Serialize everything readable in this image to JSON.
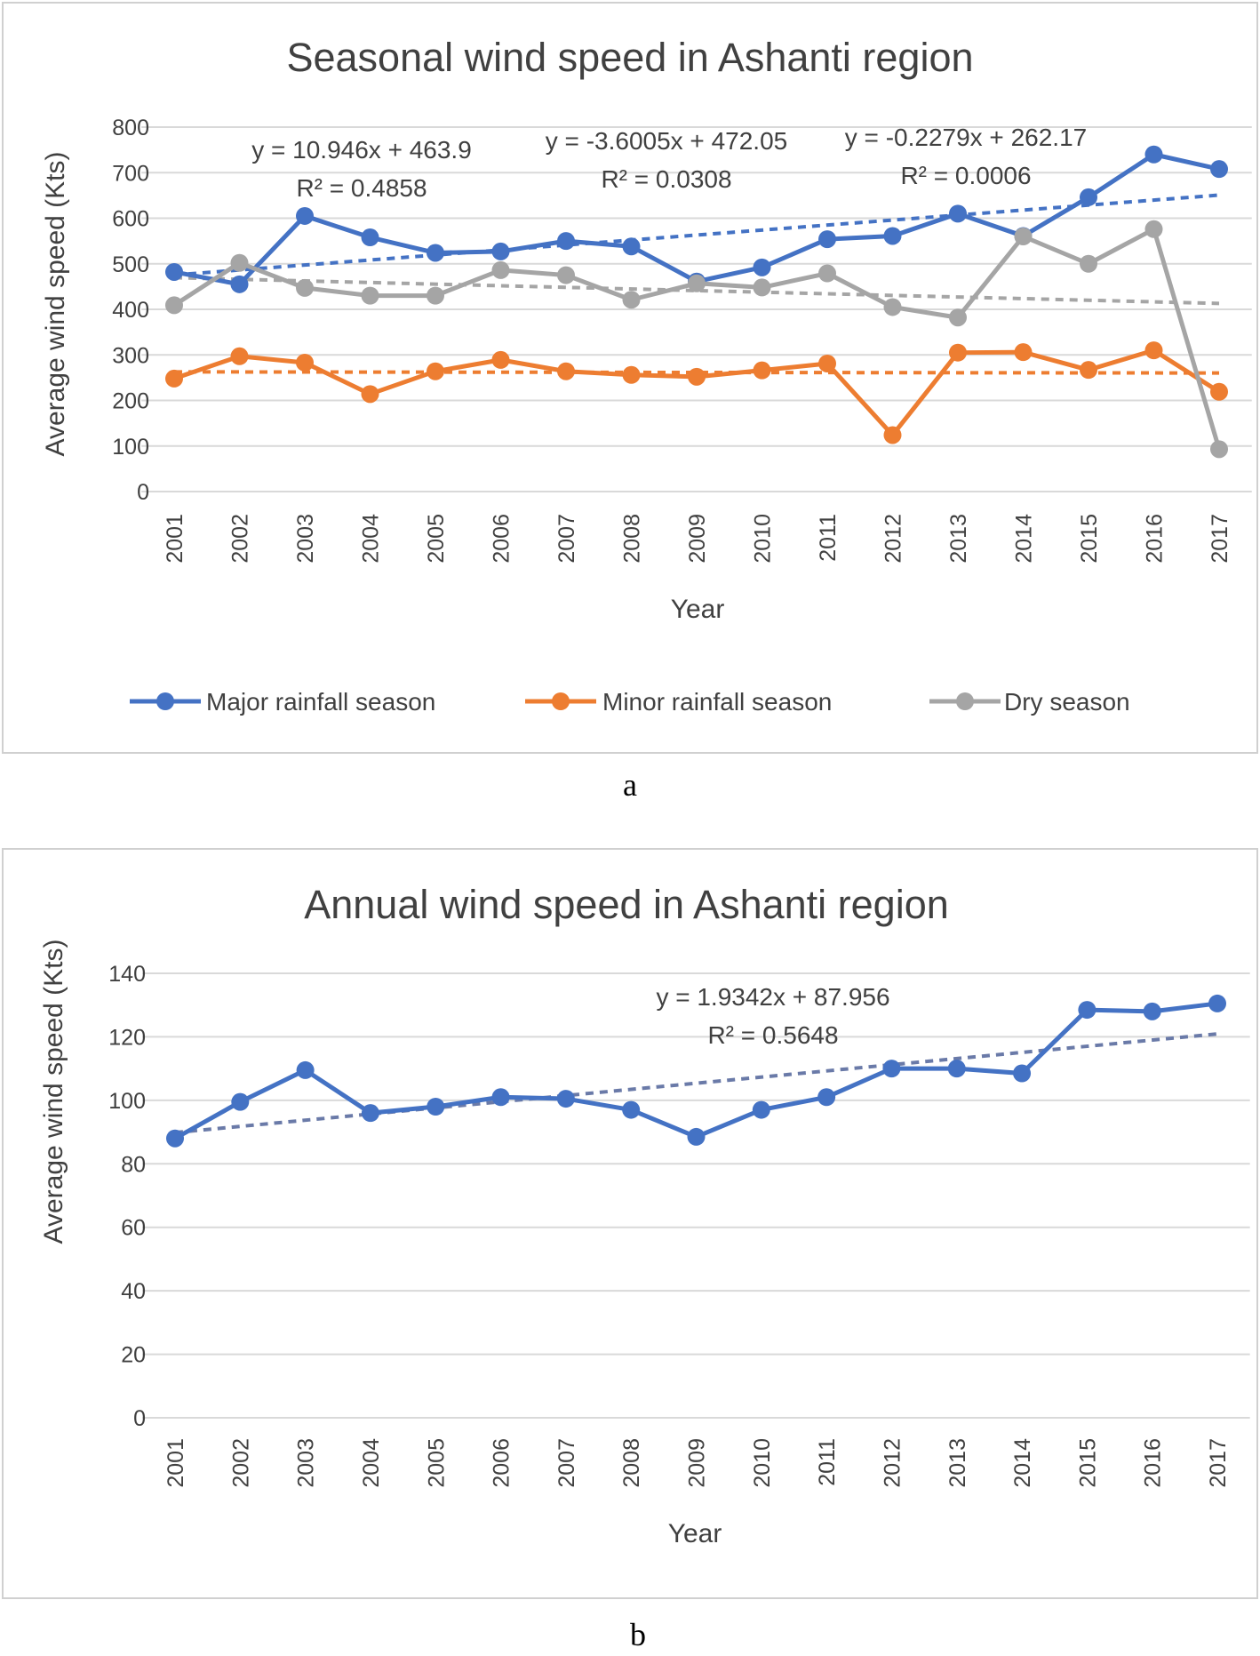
{
  "chart_data": [
    {
      "type": "line",
      "title": "Seasonal wind speed in Ashanti region",
      "xlabel": "Year",
      "ylabel": "Average wind speed (Kts)",
      "ylim": [
        0,
        800
      ],
      "yticks": [
        "0",
        "100",
        "200",
        "300",
        "400",
        "500",
        "600",
        "700",
        "800"
      ],
      "categories": [
        "2001",
        "2002",
        "2003",
        "2004",
        "2005",
        "2006",
        "2007",
        "2008",
        "2009",
        "2010",
        "2011",
        "2012",
        "2013",
        "2014",
        "2015",
        "2016",
        "2017"
      ],
      "grid": true,
      "legend": "bottom",
      "series": [
        {
          "name": "Major rainfall season",
          "color": "#4472C4",
          "values": [
            482,
            455,
            605,
            558,
            524,
            527,
            550,
            538,
            461,
            492,
            554,
            561,
            610,
            561,
            646,
            740,
            708
          ],
          "trendline": {
            "label": "y = 10.946x + 463.9",
            "r2": "R² = 0.4858"
          }
        },
        {
          "name": "Minor rainfall season",
          "color": "#ED7D31",
          "values": [
            248,
            297,
            283,
            214,
            264,
            289,
            264,
            256,
            252,
            266,
            281,
            124,
            305,
            306,
            267,
            310,
            219
          ],
          "trendline": {
            "label": "y = -0.2279x + 262.17",
            "r2": "R² = 0.0006"
          }
        },
        {
          "name": "Dry season",
          "color": "#A5A5A5",
          "values": [
            409,
            502,
            447,
            430,
            430,
            486,
            475,
            421,
            457,
            448,
            479,
            405,
            382,
            560,
            500,
            576,
            93
          ],
          "trendline": {
            "label": "y = -3.6005x + 472.05",
            "r2": "R² = 0.0308"
          }
        }
      ],
      "panel_label": "a"
    },
    {
      "type": "line",
      "title": "Annual wind speed in Ashanti region",
      "xlabel": "Year",
      "ylabel": "Average wind speed (Kts)",
      "ylim": [
        0,
        140
      ],
      "yticks": [
        "0",
        "20",
        "40",
        "60",
        "80",
        "100",
        "120",
        "140"
      ],
      "categories": [
        "2001",
        "2002",
        "2003",
        "2004",
        "2005",
        "2006",
        "2007",
        "2008",
        "2009",
        "2010",
        "2011",
        "2012",
        "2013",
        "2014",
        "2015",
        "2016",
        "2017"
      ],
      "grid": true,
      "legend": "none",
      "series": [
        {
          "color": "#4472C4",
          "values": [
            88,
            99.5,
            109.5,
            96,
            98,
            101,
            100.5,
            97,
            88.5,
            97,
            101,
            110,
            110,
            108.5,
            128.5,
            128,
            130.5
          ],
          "trendline": {
            "label": "y = 1.9342x + 87.956",
            "r2": "R² = 0.5648"
          }
        }
      ],
      "panel_label": "b"
    }
  ]
}
